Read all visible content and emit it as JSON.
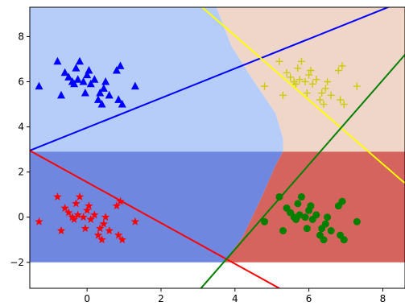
{
  "chart_data": {
    "type": "scatter",
    "title": "",
    "xlabel": "",
    "ylabel": "",
    "xlim": [
      -1.55,
      8.6
    ],
    "ylim": [
      -3.15,
      9.3
    ],
    "grid": false,
    "xticks": [
      0,
      2,
      4,
      6,
      8
    ],
    "yticks": [
      -2,
      0,
      2,
      4,
      6,
      8
    ],
    "xtick_labels": [
      "0",
      "2",
      "4",
      "6",
      "8"
    ],
    "ytick_labels": [
      "−2",
      "0",
      "2",
      "4",
      "6",
      "8"
    ],
    "regions": [
      {
        "class": "blue",
        "color": "#b5cdf8",
        "polygon": [
          [
            -1.55,
            9.3
          ],
          [
            3.5,
            9.3
          ],
          [
            3.9,
            7.6
          ],
          [
            4.4,
            6.3
          ],
          [
            5.1,
            4.6
          ],
          [
            5.3,
            3.5
          ],
          [
            5.3,
            2.9
          ],
          [
            -1.55,
            2.9
          ]
        ]
      },
      {
        "class": "yellow",
        "color": "#efd6c9",
        "polygon": [
          [
            3.5,
            9.3
          ],
          [
            8.6,
            9.3
          ],
          [
            8.6,
            2.9
          ],
          [
            5.3,
            2.9
          ],
          [
            5.3,
            3.5
          ],
          [
            5.1,
            4.6
          ],
          [
            4.4,
            6.3
          ],
          [
            3.9,
            7.6
          ]
        ]
      },
      {
        "class": "red",
        "color": "#6f87de",
        "polygon": [
          [
            -1.55,
            2.9
          ],
          [
            5.3,
            2.9
          ],
          [
            5.1,
            2.3
          ],
          [
            4.7,
            0.8
          ],
          [
            4.2,
            -0.9
          ],
          [
            3.7,
            -2.0
          ],
          [
            -1.55,
            -2.0
          ]
        ]
      },
      {
        "class": "green",
        "color": "#d6645e",
        "polygon": [
          [
            5.3,
            2.9
          ],
          [
            8.6,
            2.9
          ],
          [
            8.6,
            -2.0
          ],
          [
            3.7,
            -2.0
          ],
          [
            4.2,
            -0.9
          ],
          [
            4.7,
            0.8
          ],
          [
            5.1,
            2.3
          ]
        ]
      }
    ],
    "lines": [
      {
        "color": "#0000ff",
        "x": [
          -1.55,
          8.6
        ],
        "y": [
          2.95,
          9.6
        ]
      },
      {
        "color": "#ff0000",
        "x": [
          -1.55,
          5.2
        ],
        "y": [
          2.95,
          -3.15
        ]
      },
      {
        "color": "#ffff00",
        "x": [
          2.9,
          8.6
        ],
        "y": [
          9.6,
          1.5
        ]
      },
      {
        "color": "#008000",
        "x": [
          3.0,
          8.6
        ],
        "y": [
          -3.3,
          7.2
        ]
      }
    ],
    "series": [
      {
        "marker": "triangle",
        "color": "#0000ff",
        "points": [
          [
            -1.3,
            5.8
          ],
          [
            -0.8,
            6.9
          ],
          [
            -0.7,
            5.4
          ],
          [
            -0.6,
            6.4
          ],
          [
            -0.5,
            6.2
          ],
          [
            -0.4,
            6.0
          ],
          [
            -0.35,
            5.9
          ],
          [
            -0.3,
            6.6
          ],
          [
            -0.25,
            6.1
          ],
          [
            -0.2,
            6.9
          ],
          [
            -0.1,
            6.0
          ],
          [
            -0.05,
            5.5
          ],
          [
            0.0,
            6.3
          ],
          [
            0.05,
            6.5
          ],
          [
            0.1,
            5.9
          ],
          [
            0.2,
            6.1
          ],
          [
            0.3,
            5.2
          ],
          [
            0.35,
            5.5
          ],
          [
            0.4,
            5.0
          ],
          [
            0.45,
            5.7
          ],
          [
            0.5,
            6.0
          ],
          [
            0.6,
            5.4
          ],
          [
            0.8,
            6.5
          ],
          [
            0.85,
            5.2
          ],
          [
            0.9,
            6.7
          ],
          [
            0.95,
            5.0
          ],
          [
            1.3,
            5.8
          ]
        ]
      },
      {
        "marker": "plus",
        "color": "#cccc00",
        "points": [
          [
            4.8,
            5.8
          ],
          [
            5.2,
            6.9
          ],
          [
            5.3,
            5.4
          ],
          [
            5.4,
            6.4
          ],
          [
            5.5,
            6.2
          ],
          [
            5.6,
            6.0
          ],
          [
            5.65,
            5.9
          ],
          [
            5.7,
            6.6
          ],
          [
            5.75,
            6.1
          ],
          [
            5.8,
            6.9
          ],
          [
            5.9,
            6.0
          ],
          [
            5.95,
            5.5
          ],
          [
            6.0,
            6.3
          ],
          [
            6.05,
            6.5
          ],
          [
            6.1,
            5.9
          ],
          [
            6.2,
            6.1
          ],
          [
            6.3,
            5.2
          ],
          [
            6.35,
            5.5
          ],
          [
            6.4,
            5.0
          ],
          [
            6.45,
            5.7
          ],
          [
            6.5,
            6.0
          ],
          [
            6.6,
            5.4
          ],
          [
            6.8,
            6.5
          ],
          [
            6.85,
            5.2
          ],
          [
            6.9,
            6.7
          ],
          [
            6.95,
            5.0
          ],
          [
            7.3,
            5.8
          ]
        ]
      },
      {
        "marker": "star",
        "color": "#ff0000",
        "points": [
          [
            -1.3,
            -0.2
          ],
          [
            -0.8,
            0.9
          ],
          [
            -0.7,
            -0.6
          ],
          [
            -0.6,
            0.4
          ],
          [
            -0.5,
            0.2
          ],
          [
            -0.4,
            0.0
          ],
          [
            -0.35,
            -0.1
          ],
          [
            -0.3,
            0.6
          ],
          [
            -0.25,
            0.1
          ],
          [
            -0.2,
            0.9
          ],
          [
            -0.1,
            0.0
          ],
          [
            -0.05,
            -0.5
          ],
          [
            0.0,
            0.3
          ],
          [
            0.05,
            0.5
          ],
          [
            0.1,
            -0.1
          ],
          [
            0.2,
            0.1
          ],
          [
            0.3,
            -0.8
          ],
          [
            0.35,
            -0.5
          ],
          [
            0.4,
            -1.0
          ],
          [
            0.45,
            -0.3
          ],
          [
            0.5,
            0.0
          ],
          [
            0.6,
            -0.6
          ],
          [
            0.8,
            0.5
          ],
          [
            0.85,
            -0.8
          ],
          [
            0.9,
            0.7
          ],
          [
            0.95,
            -1.0
          ],
          [
            1.3,
            -0.2
          ]
        ]
      },
      {
        "marker": "circle",
        "color": "#008000",
        "points": [
          [
            4.8,
            -0.2
          ],
          [
            5.2,
            0.9
          ],
          [
            5.3,
            -0.6
          ],
          [
            5.4,
            0.4
          ],
          [
            5.5,
            0.2
          ],
          [
            5.6,
            0.0
          ],
          [
            5.65,
            -0.1
          ],
          [
            5.7,
            0.6
          ],
          [
            5.75,
            0.1
          ],
          [
            5.8,
            0.9
          ],
          [
            5.9,
            0.0
          ],
          [
            5.95,
            -0.5
          ],
          [
            6.0,
            0.3
          ],
          [
            6.05,
            0.5
          ],
          [
            6.1,
            -0.1
          ],
          [
            6.2,
            0.1
          ],
          [
            6.3,
            -0.8
          ],
          [
            6.35,
            -0.5
          ],
          [
            6.4,
            -1.0
          ],
          [
            6.45,
            -0.3
          ],
          [
            6.5,
            0.0
          ],
          [
            6.6,
            -0.6
          ],
          [
            6.8,
            0.5
          ],
          [
            6.85,
            -0.8
          ],
          [
            6.9,
            0.7
          ],
          [
            6.95,
            -1.0
          ],
          [
            7.3,
            -0.2
          ]
        ]
      }
    ]
  }
}
